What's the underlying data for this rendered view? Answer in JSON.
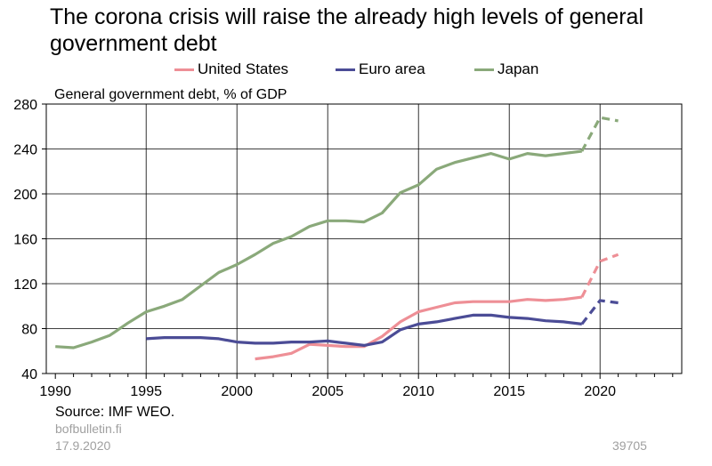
{
  "title": "The corona crisis will raise the already high levels of general government debt",
  "ylabel": "General government debt, % of GDP",
  "source": "Source: IMF WEO.",
  "site": "bofbulletin.fi",
  "date": "17.9.2020",
  "code": "39705",
  "colors": {
    "united_states": "#ee8f96",
    "euro_area": "#4b4c96",
    "japan": "#8aa97a"
  },
  "chart_data": {
    "type": "line",
    "title": "The corona crisis will raise the already high levels of general government debt",
    "ylabel": "General government debt, % of GDP",
    "xlabel": "",
    "ylim": [
      40,
      280
    ],
    "xlim": [
      1989.5,
      2024.5
    ],
    "yticks": [
      40,
      80,
      120,
      160,
      200,
      240,
      280
    ],
    "xticks": [
      1990,
      1995,
      2000,
      2005,
      2010,
      2015,
      2020
    ],
    "grid": true,
    "legend_position": "top",
    "forecast_from": 2019,
    "series": [
      {
        "name": "United States",
        "color": "#ee8f96",
        "x": [
          2001,
          2002,
          2003,
          2004,
          2005,
          2006,
          2007,
          2008,
          2009,
          2010,
          2011,
          2012,
          2013,
          2014,
          2015,
          2016,
          2017,
          2018,
          2019,
          2020,
          2021
        ],
        "values": [
          53,
          55,
          58,
          66,
          65,
          64,
          64,
          73,
          86,
          95,
          99,
          103,
          104,
          104,
          104,
          106,
          105,
          106,
          108,
          140,
          146
        ]
      },
      {
        "name": "Euro area",
        "color": "#4b4c96",
        "x": [
          1995,
          1996,
          1997,
          1998,
          1999,
          2000,
          2001,
          2002,
          2003,
          2004,
          2005,
          2006,
          2007,
          2008,
          2009,
          2010,
          2011,
          2012,
          2013,
          2014,
          2015,
          2016,
          2017,
          2018,
          2019,
          2020,
          2021
        ],
        "values": [
          71,
          72,
          72,
          72,
          71,
          68,
          67,
          67,
          68,
          68,
          69,
          67,
          65,
          68,
          79,
          84,
          86,
          89,
          92,
          92,
          90,
          89,
          87,
          86,
          84,
          105,
          103
        ]
      },
      {
        "name": "Japan",
        "color": "#8aa97a",
        "x": [
          1990,
          1991,
          1992,
          1993,
          1994,
          1995,
          1996,
          1997,
          1998,
          1999,
          2000,
          2001,
          2002,
          2003,
          2004,
          2005,
          2006,
          2007,
          2008,
          2009,
          2010,
          2011,
          2012,
          2013,
          2014,
          2015,
          2016,
          2017,
          2018,
          2019,
          2020,
          2021
        ],
        "values": [
          64,
          63,
          68,
          74,
          85,
          95,
          100,
          106,
          118,
          130,
          137,
          146,
          156,
          162,
          171,
          176,
          176,
          175,
          183,
          201,
          208,
          222,
          228,
          232,
          236,
          231,
          236,
          234,
          236,
          238,
          268,
          265
        ]
      }
    ]
  }
}
